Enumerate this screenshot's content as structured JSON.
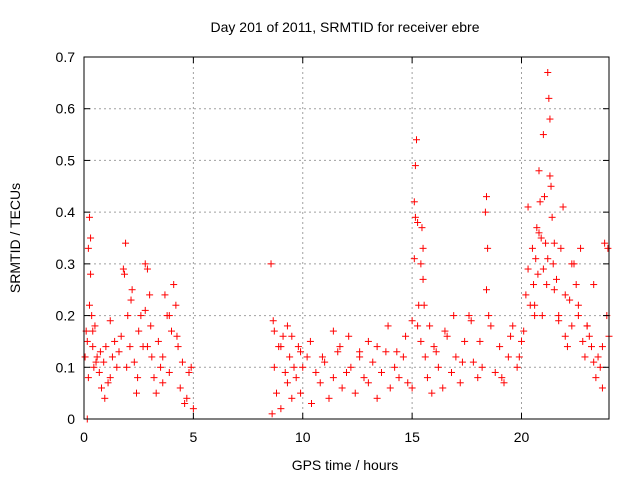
{
  "chart_data": {
    "type": "scatter",
    "title": "Day 201 of 2011, SRMTID for receiver ebre",
    "xlabel": "GPS time / hours",
    "ylabel": "SRMTID / TECUs",
    "xlim": [
      0,
      24
    ],
    "ylim": [
      0,
      0.7
    ],
    "xticks": [
      0,
      5,
      10,
      15,
      20
    ],
    "yticks": [
      0,
      0.1,
      0.2,
      0.3,
      0.4,
      0.5,
      0.6,
      0.7
    ],
    "ytick_labels": [
      "0",
      "0.1",
      "0.2",
      "0.3",
      "0.4",
      "0.5",
      "0.6",
      "0.7"
    ],
    "grid": true,
    "marker": "+",
    "color": "#ff0000",
    "series": [
      {
        "name": "SRMTID",
        "x": [
          0.05,
          0.1,
          0.15,
          0.2,
          0.25,
          0.3,
          0.35,
          0.4,
          0.45,
          0.5,
          0.6,
          0.7,
          0.8,
          0.9,
          1.0,
          1.1,
          1.2,
          1.3,
          1.4,
          1.5,
          1.6,
          1.7,
          1.8,
          1.9,
          2.0,
          2.1,
          2.2,
          2.3,
          2.4,
          2.5,
          2.6,
          2.7,
          2.8,
          2.9,
          3.0,
          3.1,
          3.2,
          3.3,
          3.4,
          3.5,
          3.6,
          3.7,
          3.8,
          3.9,
          4.0,
          4.1,
          4.2,
          4.3,
          4.4,
          4.5,
          4.6,
          4.7,
          4.8,
          4.9,
          5.0,
          0.15,
          0.2,
          0.25,
          0.3,
          0.4,
          0.55,
          0.75,
          0.95,
          1.2,
          1.85,
          1.95,
          2.15,
          2.45,
          2.8,
          2.9,
          3.05,
          3.6,
          3.9,
          4.25,
          8.55,
          8.6,
          8.65,
          8.7,
          8.8,
          8.9,
          9.0,
          9.1,
          9.2,
          9.3,
          9.4,
          9.5,
          9.6,
          9.7,
          9.8,
          9.9,
          10.0,
          10.2,
          10.4,
          10.6,
          10.8,
          11.0,
          11.2,
          11.4,
          11.6,
          11.8,
          12.0,
          12.2,
          12.4,
          12.6,
          12.8,
          13.0,
          13.2,
          13.4,
          13.6,
          13.8,
          14.0,
          14.2,
          14.4,
          14.6,
          14.8,
          15.0,
          8.7,
          9.0,
          9.3,
          9.5,
          9.9,
          10.35,
          10.9,
          11.4,
          11.7,
          12.1,
          12.6,
          13.0,
          13.4,
          13.9,
          14.3,
          14.7,
          15.0,
          15.1,
          15.15,
          15.2,
          15.25,
          15.3,
          15.4,
          15.45,
          15.5,
          15.6,
          15.7,
          15.8,
          15.9,
          16.0,
          16.2,
          16.4,
          16.6,
          16.8,
          17.0,
          17.2,
          17.4,
          17.6,
          17.8,
          18.0,
          18.2,
          18.35,
          18.4,
          18.45,
          18.6,
          18.8,
          19.0,
          19.2,
          19.4,
          19.6,
          19.8,
          20.0,
          15.1,
          15.15,
          15.25,
          15.4,
          15.5,
          15.55,
          16.1,
          16.5,
          16.9,
          17.3,
          17.7,
          18.1,
          18.4,
          18.5,
          19.1,
          19.5,
          19.9,
          20.1,
          20.2,
          20.3,
          20.4,
          20.5,
          20.55,
          20.6,
          20.65,
          20.7,
          20.75,
          20.8,
          20.85,
          20.9,
          20.95,
          21.0,
          21.05,
          21.1,
          21.15,
          21.2,
          21.25,
          21.3,
          21.35,
          21.4,
          21.45,
          21.5,
          21.6,
          21.7,
          21.8,
          21.9,
          22.0,
          22.1,
          22.2,
          22.3,
          22.4,
          22.5,
          22.6,
          22.7,
          22.8,
          22.9,
          23.0,
          23.1,
          23.2,
          23.3,
          23.4,
          23.5,
          23.6,
          23.7,
          23.8,
          23.9,
          24.0,
          20.3,
          20.6,
          20.8,
          21.0,
          21.2,
          21.3,
          21.5,
          21.7,
          22.0,
          22.3,
          22.6,
          23.0,
          23.3,
          23.7,
          23.95
        ],
        "y": [
          0.12,
          0.17,
          0.0,
          0.33,
          0.39,
          0.28,
          0.2,
          0.14,
          0.1,
          0.18,
          0.12,
          0.09,
          0.06,
          0.11,
          0.14,
          0.07,
          0.08,
          0.12,
          0.15,
          0.1,
          0.13,
          0.16,
          0.29,
          0.34,
          0.2,
          0.14,
          0.25,
          0.11,
          0.05,
          0.17,
          0.2,
          0.14,
          0.3,
          0.29,
          0.24,
          0.12,
          0.08,
          0.05,
          0.15,
          0.1,
          0.07,
          0.24,
          0.2,
          0.09,
          0.17,
          0.26,
          0.22,
          0.14,
          0.06,
          0.11,
          0.03,
          0.04,
          0.09,
          0.1,
          0.02,
          0.15,
          0.08,
          0.22,
          0.35,
          0.17,
          0.11,
          0.13,
          0.04,
          0.19,
          0.28,
          0.1,
          0.23,
          0.08,
          0.21,
          0.14,
          0.18,
          0.12,
          0.2,
          0.16,
          0.3,
          0.01,
          0.19,
          0.1,
          0.05,
          0.14,
          0.02,
          0.16,
          0.09,
          0.07,
          0.12,
          0.04,
          0.1,
          0.08,
          0.14,
          0.05,
          0.1,
          0.12,
          0.03,
          0.09,
          0.07,
          0.11,
          0.04,
          0.08,
          0.13,
          0.06,
          0.09,
          0.1,
          0.05,
          0.12,
          0.08,
          0.07,
          0.11,
          0.04,
          0.09,
          0.13,
          0.06,
          0.1,
          0.08,
          0.12,
          0.07,
          0.06,
          0.17,
          0.14,
          0.18,
          0.16,
          0.13,
          0.15,
          0.12,
          0.17,
          0.14,
          0.16,
          0.13,
          0.15,
          0.14,
          0.18,
          0.13,
          0.16,
          0.19,
          0.31,
          0.49,
          0.54,
          0.38,
          0.22,
          0.15,
          0.37,
          0.33,
          0.12,
          0.08,
          0.18,
          0.05,
          0.14,
          0.1,
          0.06,
          0.16,
          0.09,
          0.12,
          0.07,
          0.15,
          0.2,
          0.11,
          0.08,
          0.1,
          0.4,
          0.43,
          0.33,
          0.18,
          0.09,
          0.14,
          0.07,
          0.12,
          0.18,
          0.1,
          0.15,
          0.42,
          0.39,
          0.18,
          0.3,
          0.27,
          0.22,
          0.13,
          0.17,
          0.2,
          0.11,
          0.19,
          0.15,
          0.25,
          0.2,
          0.08,
          0.16,
          0.12,
          0.17,
          0.24,
          0.29,
          0.22,
          0.33,
          0.26,
          0.2,
          0.31,
          0.37,
          0.28,
          0.48,
          0.42,
          0.35,
          0.2,
          0.55,
          0.43,
          0.34,
          0.26,
          0.67,
          0.62,
          0.58,
          0.45,
          0.39,
          0.3,
          0.34,
          0.27,
          0.2,
          0.33,
          0.41,
          0.16,
          0.14,
          0.23,
          0.18,
          0.3,
          0.26,
          0.2,
          0.33,
          0.15,
          0.12,
          0.18,
          0.16,
          0.14,
          0.11,
          0.08,
          0.12,
          0.1,
          0.06,
          0.34,
          0.2,
          0.16,
          0.41,
          0.22,
          0.36,
          0.29,
          0.31,
          0.47,
          0.25,
          0.19,
          0.24,
          0.3,
          0.22,
          0.18,
          0.26,
          0.14,
          0.33
        ]
      }
    ]
  }
}
